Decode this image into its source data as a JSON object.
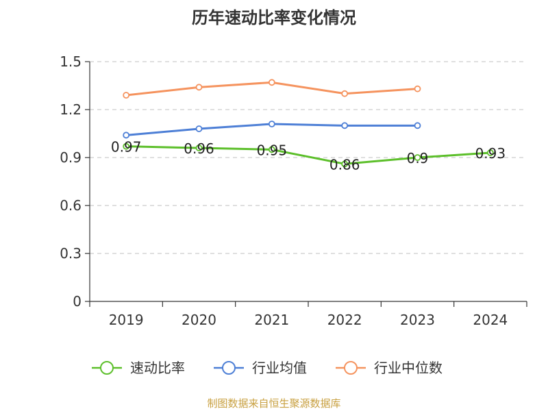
{
  "chart_data": {
    "type": "line",
    "title": "历年速动比率变化情况",
    "categories": [
      "2019",
      "2020",
      "2021",
      "2022",
      "2023",
      "2024"
    ],
    "y_ticks": [
      "0",
      "0.3",
      "0.6",
      "0.9",
      "1.2",
      "1.5"
    ],
    "ylim": [
      0,
      1.5
    ],
    "grid": true,
    "legend_position": "bottom",
    "series": [
      {
        "name": "速动比率",
        "color": "#5cbf2a",
        "values": [
          0.97,
          0.96,
          0.95,
          0.86,
          0.9,
          0.93
        ],
        "labels": [
          "0.97",
          "0.96",
          "0.95",
          "0.86",
          "0.9",
          "0.93"
        ]
      },
      {
        "name": "行业均值",
        "color": "#4d7fd6",
        "values": [
          1.04,
          1.08,
          1.11,
          1.1,
          1.1,
          null
        ]
      },
      {
        "name": "行业中位数",
        "color": "#f5935e",
        "values": [
          1.29,
          1.34,
          1.37,
          1.3,
          1.33,
          null
        ]
      }
    ]
  },
  "source_text": "制图数据来自恒生聚源数据库"
}
